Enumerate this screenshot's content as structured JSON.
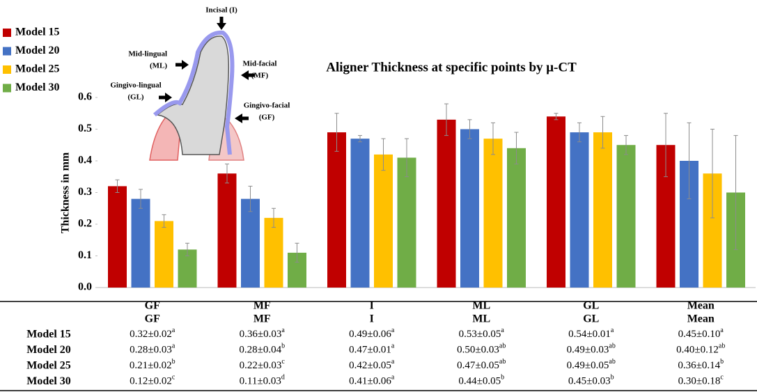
{
  "chart_data": {
    "type": "bar",
    "title": "Aligner Thickness at specific points by μ-CT",
    "y_label": "Thickness in mm",
    "categories": [
      "GF",
      "MF",
      "I",
      "ML",
      "GL",
      "Mean"
    ],
    "series": [
      {
        "name": "Model 15",
        "color": "#c00000",
        "values": [
          0.32,
          0.36,
          0.49,
          0.53,
          0.54,
          0.45
        ],
        "errors": [
          0.02,
          0.03,
          0.06,
          0.05,
          0.01,
          0.1
        ]
      },
      {
        "name": "Model 20",
        "color": "#4472c4",
        "values": [
          0.28,
          0.28,
          0.47,
          0.5,
          0.49,
          0.4
        ],
        "errors": [
          0.03,
          0.04,
          0.01,
          0.03,
          0.03,
          0.12
        ]
      },
      {
        "name": "Model 25",
        "color": "#ffc000",
        "values": [
          0.21,
          0.22,
          0.42,
          0.47,
          0.49,
          0.36
        ],
        "errors": [
          0.02,
          0.03,
          0.05,
          0.05,
          0.05,
          0.14
        ]
      },
      {
        "name": "Model 30",
        "color": "#70ad47",
        "values": [
          0.12,
          0.11,
          0.41,
          0.44,
          0.45,
          0.3
        ],
        "errors": [
          0.02,
          0.03,
          0.06,
          0.05,
          0.03,
          0.18
        ]
      }
    ],
    "ylim": [
      0,
      0.6
    ],
    "yticks": [
      {
        "value": 0,
        "label": "0.0"
      },
      0.1,
      0.2,
      0.3,
      0.4,
      0.5,
      0.6
    ],
    "grid": false
  },
  "diagram": {
    "labels": [
      {
        "lines": [
          "Incisal (I)"
        ]
      },
      {
        "lines": [
          "Mid-lingual",
          "(ML)"
        ]
      },
      {
        "lines": [
          "Mid-facial",
          "(MF)"
        ]
      },
      {
        "lines": [
          "Gingivo-lingual",
          "(GL)"
        ]
      },
      {
        "lines": [
          "Gingivo-facial",
          "(GF)"
        ]
      }
    ]
  },
  "table": {
    "header": [
      "GF",
      "MF",
      "I",
      "ML",
      "GL",
      "Mean"
    ],
    "rows": [
      {
        "label": "Model 15",
        "cells": [
          {
            "text": "0.32±0.02",
            "sup": "a"
          },
          {
            "text": "0.36±0.03",
            "sup": "a"
          },
          {
            "text": "0.49±0.06",
            "sup": "a"
          },
          {
            "text": "0.53±0.05",
            "sup": "a"
          },
          {
            "text": "0.54±0.01",
            "sup": "a"
          },
          {
            "text": "0.45±0.10",
            "sup": "a"
          }
        ]
      },
      {
        "label": "Model 20",
        "cells": [
          {
            "text": "0.28±0.03",
            "sup": "a"
          },
          {
            "text": "0.28±0.04",
            "sup": "b"
          },
          {
            "text": "0.47±0.01",
            "sup": "a"
          },
          {
            "text": "0.50±0.03",
            "sup": "ab"
          },
          {
            "text": "0.49±0.03",
            "sup": "ab"
          },
          {
            "text": "0.40±0.12",
            "sup": "ab"
          }
        ]
      },
      {
        "label": "Model 25",
        "cells": [
          {
            "text": "0.21±0.02",
            "sup": "b"
          },
          {
            "text": "0.22±0.03",
            "sup": "c"
          },
          {
            "text": "0.42±0.05",
            "sup": "a"
          },
          {
            "text": "0.47±0.05",
            "sup": "ab"
          },
          {
            "text": "0.49±0.05",
            "sup": "ab"
          },
          {
            "text": "0.36±0.14",
            "sup": "b"
          }
        ]
      },
      {
        "label": "Model 30",
        "cells": [
          {
            "text": "0.12±0.02",
            "sup": "c"
          },
          {
            "text": "0.11±0.03",
            "sup": "d"
          },
          {
            "text": "0.41±0.06",
            "sup": "a"
          },
          {
            "text": "0.44±0.05",
            "sup": "b"
          },
          {
            "text": "0.45±0.03",
            "sup": "b"
          },
          {
            "text": "0.30±0.18",
            "sup": "c"
          }
        ]
      }
    ]
  }
}
